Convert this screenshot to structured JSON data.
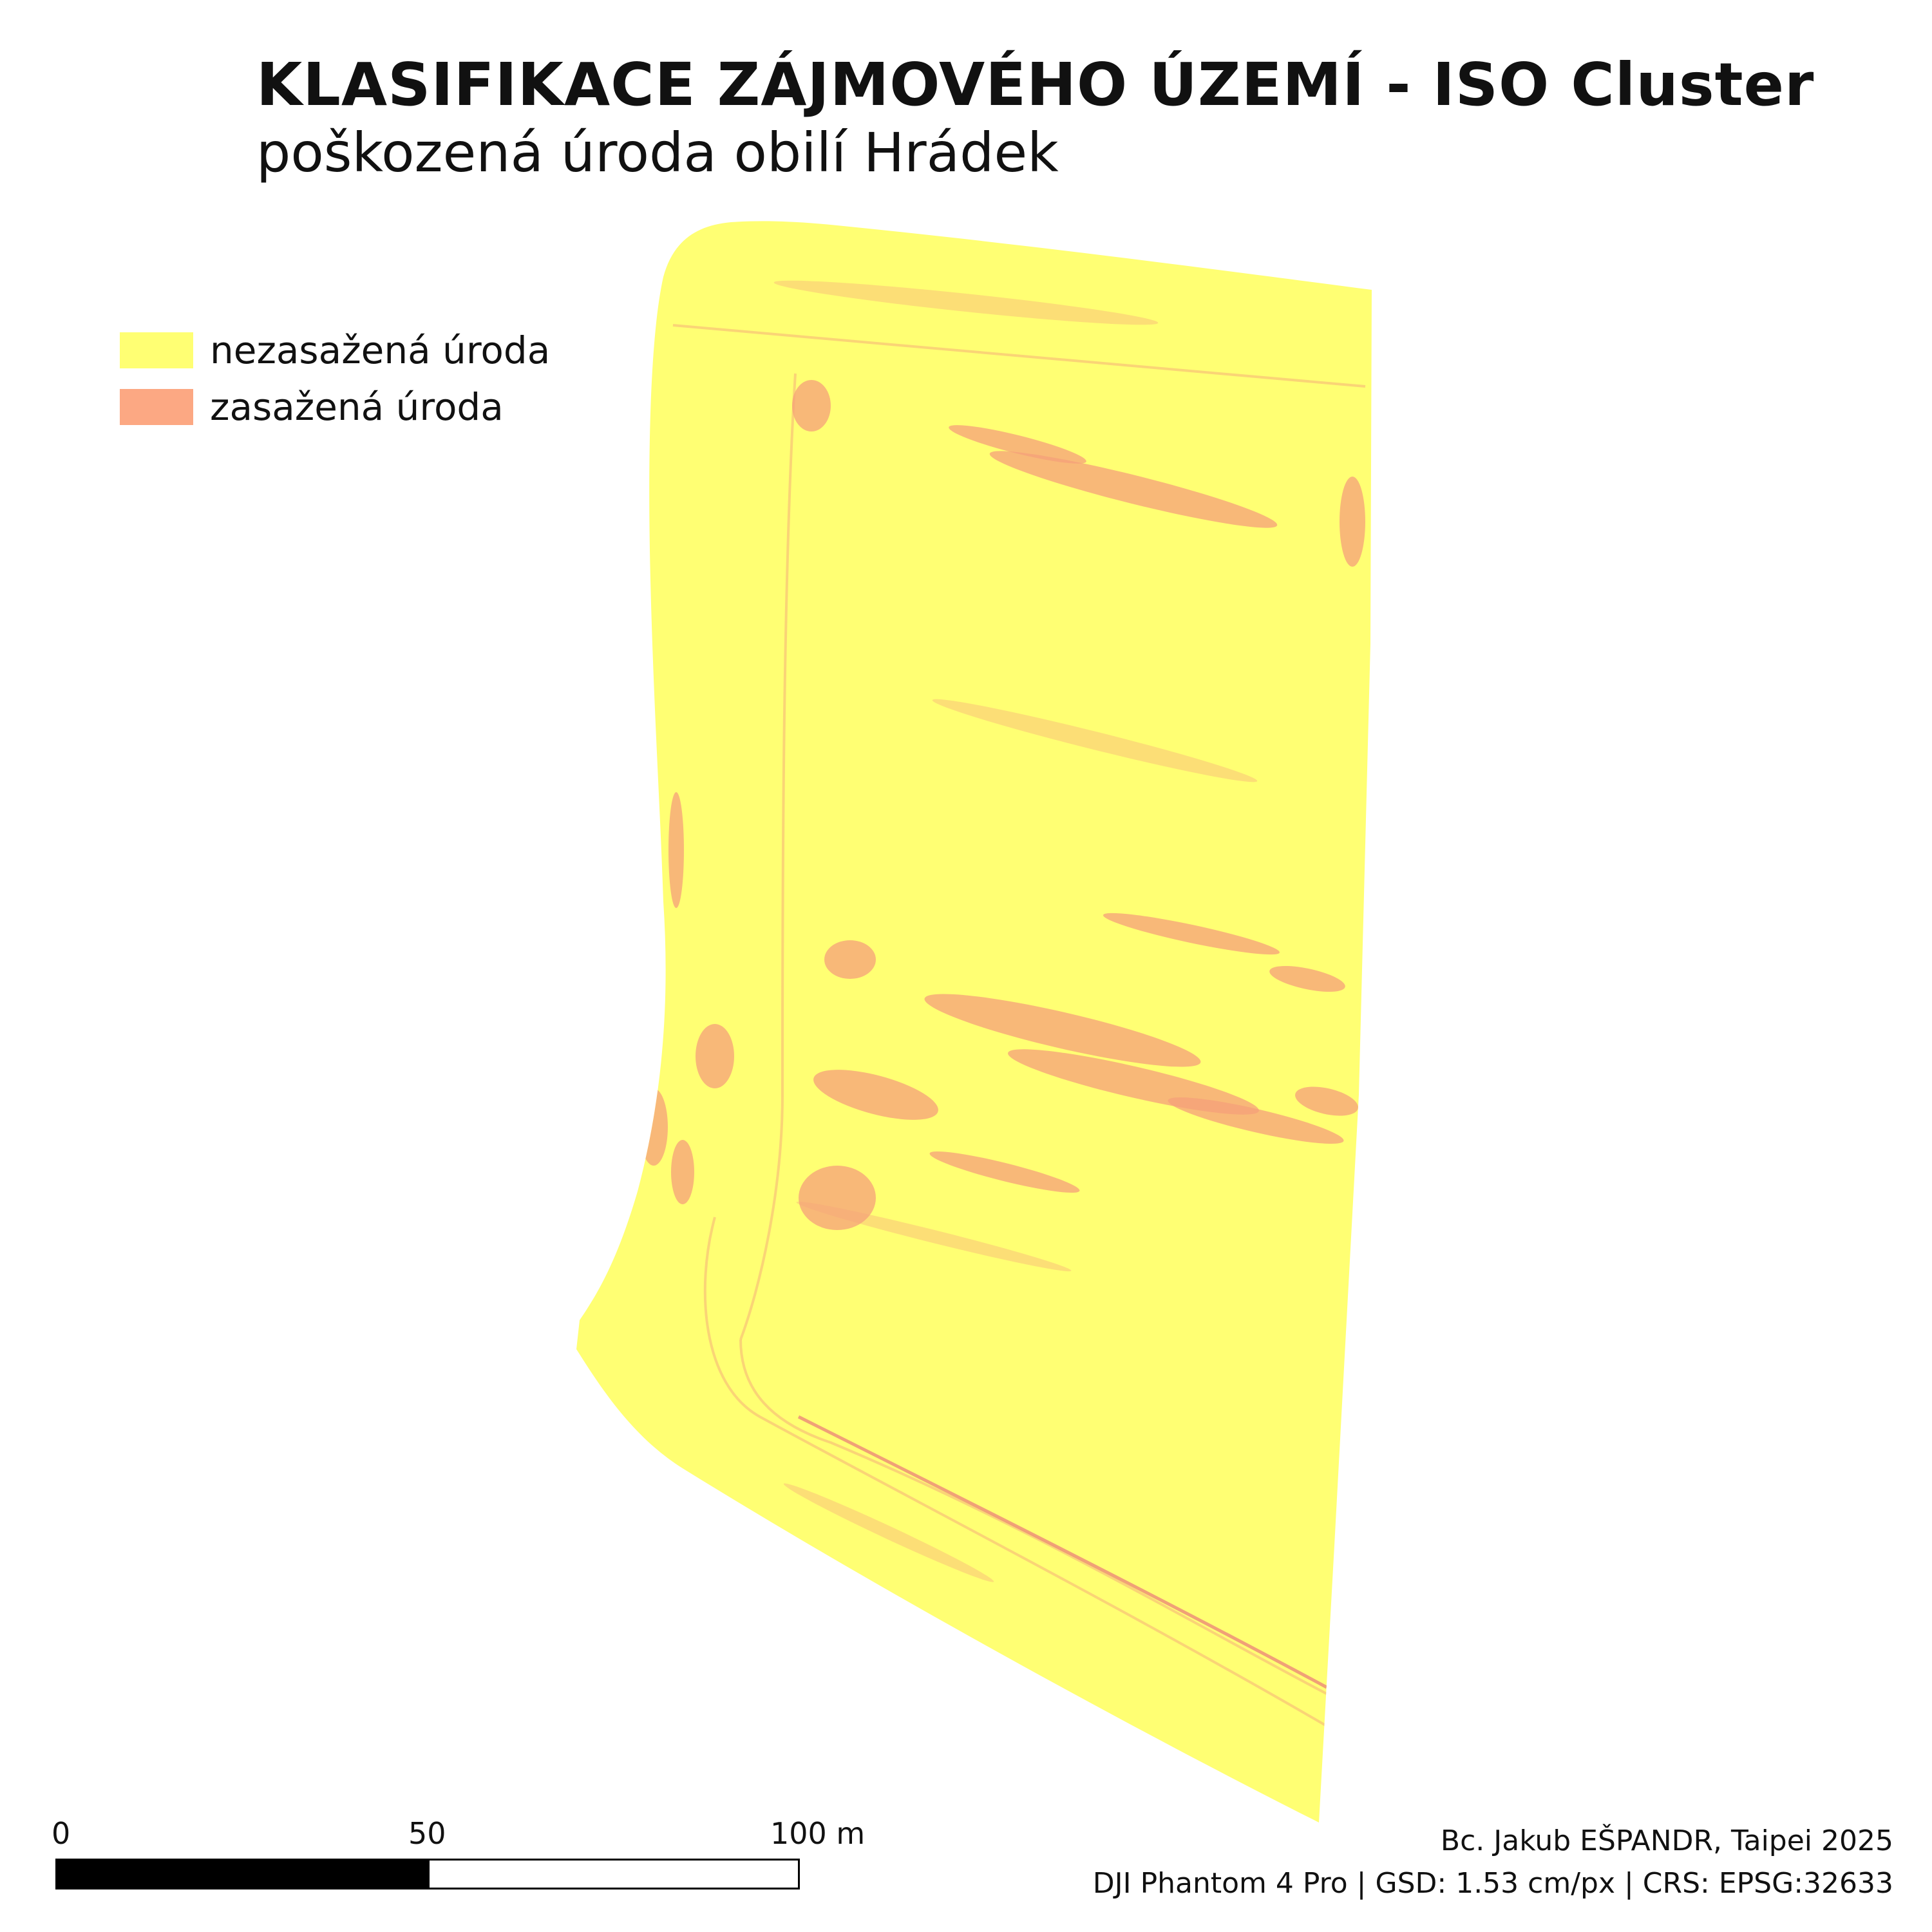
{
  "title": "KLASIFIKACE ZÁJMOVÉHO ÚZEMÍ - ISO Cluster",
  "subtitle": "poškozená úroda obilí Hrádek",
  "legend": {
    "items": [
      {
        "label": "nezasažená úroda",
        "color": "#ffff73"
      },
      {
        "label": "zasažená úroda",
        "color": "#fca883"
      }
    ]
  },
  "map": {
    "field_color": "#ffff73",
    "damage_color": "#f5a07a",
    "damage_strong_color": "#ec8a78"
  },
  "scalebar": {
    "labels": [
      "0",
      "50",
      "100 m"
    ]
  },
  "credits": {
    "author": "Bc. Jakub EŠPANDR, Taipei 2025",
    "details": "DJI Phantom 4 Pro | GSD: 1.53 cm/px | CRS: EPSG:32633"
  }
}
